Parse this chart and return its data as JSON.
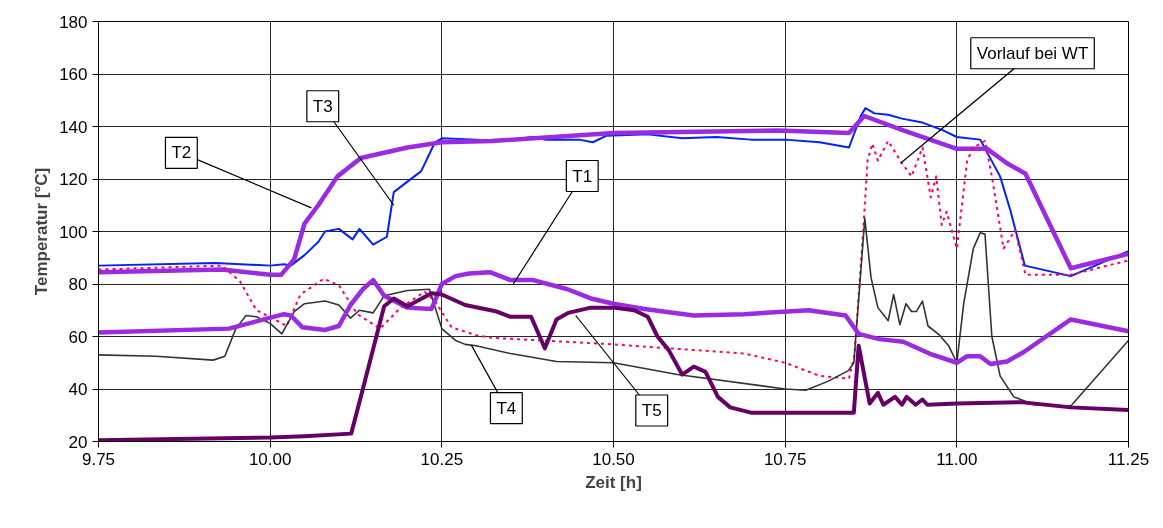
{
  "chart_data": {
    "type": "line",
    "xlabel": "Zeit [h]",
    "ylabel": "Temperatur [°C]",
    "xlim": [
      9.75,
      11.25
    ],
    "xticks": [
      {
        "value": 9.75,
        "label": "9.75"
      },
      {
        "value": 10.0,
        "label": "10.00"
      },
      {
        "value": 10.25,
        "label": "10.25"
      },
      {
        "value": 10.5,
        "label": "10.50"
      },
      {
        "value": 10.75,
        "label": "10.75"
      },
      {
        "value": 11.0,
        "label": "11.00"
      },
      {
        "value": 11.25,
        "label": "11.25"
      }
    ],
    "ylim": [
      20,
      180
    ],
    "yticks": [
      20,
      40,
      60,
      80,
      100,
      120,
      140,
      160,
      180
    ],
    "grid": true,
    "marker": "none",
    "series": [
      {
        "color": "#0022ff",
        "line_style": "solid",
        "x": [
          9.75,
          9.92,
          10.0,
          10.02,
          10.03,
          10.05,
          10.07,
          10.08,
          10.1,
          10.12,
          10.13,
          10.15,
          10.17,
          10.18,
          10.22,
          10.24,
          10.25,
          10.3,
          10.35,
          10.38,
          10.4,
          10.45,
          10.47,
          10.49,
          10.55,
          10.6,
          10.65,
          10.7,
          10.75,
          10.8,
          10.843,
          10.86,
          10.867,
          10.88,
          10.9,
          10.92,
          10.95,
          10.98,
          11.0,
          11.034,
          11.063,
          11.078,
          11.099,
          11.166,
          11.25
        ],
        "values": [
          87,
          88,
          87,
          87.5,
          87,
          91,
          96,
          100,
          101,
          97,
          101,
          95,
          98,
          115,
          123,
          134,
          135.5,
          135,
          134.5,
          136,
          135,
          135,
          134,
          136.5,
          137,
          135.5,
          136,
          135,
          135,
          134,
          132,
          144,
          147,
          145,
          144.5,
          143,
          141.5,
          138.5,
          136,
          135,
          121,
          108,
          87,
          83,
          92.5
        ]
      },
      {
        "color": "#9a2be2",
        "line_style": "solid",
        "x": [
          9.75,
          9.93,
          10.0,
          10.016,
          10.035,
          10.05,
          10.07,
          10.098,
          10.132,
          10.2,
          10.25,
          10.323,
          10.5,
          10.74,
          10.843,
          10.865,
          10.922,
          11.0,
          11.044,
          11.073,
          11.1,
          11.166,
          11.25
        ],
        "values": [
          84.5,
          85.5,
          83.5,
          83.5,
          89.5,
          103,
          110,
          121,
          128,
          132,
          134,
          134.5,
          137.5,
          138.5,
          137.5,
          144,
          138.5,
          131.5,
          131.5,
          126,
          122,
          86,
          91.5
        ]
      },
      {
        "color": "#ff0066",
        "line_style": "dashed",
        "x": [
          9.75,
          9.93,
          9.956,
          9.98,
          10.01,
          10.024,
          10.044,
          10.078,
          10.1,
          10.127,
          10.16,
          10.19,
          10.225,
          10.24,
          10.264,
          10.3,
          10.323,
          10.5,
          10.69,
          10.75,
          10.8,
          10.843,
          10.851,
          10.863,
          10.87,
          10.877,
          10.885,
          10.9,
          10.92,
          10.934,
          10.95,
          10.962,
          10.97,
          10.978,
          10.985,
          11.0,
          11.015,
          11.024,
          11.041,
          11.051,
          11.068,
          11.085,
          11.1,
          11.166,
          11.25
        ],
        "values": [
          85.5,
          87,
          81,
          70,
          66,
          64,
          76,
          82,
          79.5,
          68.5,
          63,
          71,
          77,
          73.5,
          63.5,
          60.5,
          59.5,
          57,
          53.5,
          50,
          45,
          44,
          53,
          98,
          127,
          133.5,
          127,
          134.5,
          126,
          121,
          132,
          113,
          121,
          102.5,
          107.5,
          93.5,
          127,
          132,
          134.5,
          121,
          93.5,
          100.5,
          83.5,
          83.5,
          89
        ]
      },
      {
        "color": "#333333",
        "line_style": "solid",
        "x": [
          9.75,
          9.834,
          9.917,
          9.934,
          9.95,
          9.965,
          9.98,
          10.0,
          10.017,
          10.035,
          10.05,
          10.08,
          10.1,
          10.117,
          10.13,
          10.15,
          10.166,
          10.2,
          10.232,
          10.25,
          10.27,
          10.284,
          10.3,
          10.35,
          10.417,
          10.5,
          10.593,
          10.75,
          10.78,
          10.813,
          10.842,
          10.85,
          10.866,
          10.875,
          10.885,
          10.9,
          10.908,
          10.917,
          10.926,
          10.934,
          10.941,
          10.95,
          10.958,
          10.975,
          10.988,
          11.0,
          11.01,
          11.024,
          11.034,
          11.041,
          11.051,
          11.063,
          11.083,
          11.112,
          11.166,
          11.25
        ],
        "values": [
          53,
          52.5,
          51,
          52.5,
          63,
          68,
          67.5,
          65,
          61,
          69.5,
          72.5,
          73.5,
          72,
          67,
          70,
          69,
          75.5,
          77.5,
          78,
          63,
          58.5,
          57,
          56.5,
          53.5,
          50.5,
          50,
          45.5,
          40,
          39.5,
          43,
          47,
          50,
          105,
          82.5,
          71,
          66,
          76,
          64.5,
          72.5,
          69.5,
          69.5,
          73.5,
          64,
          60.5,
          56.5,
          50,
          72.5,
          93.5,
          99.5,
          99,
          60,
          45,
          37,
          34,
          33.5,
          58.5
        ]
      },
      {
        "color": "#9a2be2",
        "line_style": "solid",
        "x": [
          9.75,
          9.94,
          10.02,
          10.03,
          10.047,
          10.08,
          10.1,
          10.117,
          10.135,
          10.15,
          10.166,
          10.2,
          10.235,
          10.25,
          10.27,
          10.29,
          10.32,
          10.35,
          10.383,
          10.433,
          10.467,
          10.5,
          10.545,
          10.617,
          10.69,
          10.784,
          10.838,
          10.857,
          10.887,
          10.922,
          10.96,
          11.0,
          11.015,
          11.034,
          11.049,
          11.073,
          11.097,
          11.166,
          11.25
        ],
        "values": [
          61.5,
          63,
          68.5,
          68,
          63.5,
          62.5,
          64,
          72,
          78,
          81.5,
          75.5,
          71,
          70.5,
          80,
          83,
          84,
          84.5,
          81.5,
          81.5,
          78,
          74.5,
          72.5,
          70.5,
          68,
          68.5,
          70,
          68,
          61,
          59,
          58,
          53.5,
          50,
          52.5,
          52.5,
          49.5,
          50.5,
          54,
          66.5,
          62
        ]
      },
      {
        "color": "#660066",
        "line_style": "solid",
        "x": [
          9.75,
          10.0,
          10.05,
          10.118,
          10.133,
          10.166,
          10.18,
          10.2,
          10.235,
          10.25,
          10.284,
          10.33,
          10.35,
          10.38,
          10.4,
          10.417,
          10.434,
          10.467,
          10.5,
          10.53,
          10.55,
          10.564,
          10.58,
          10.6,
          10.617,
          10.634,
          10.652,
          10.67,
          10.7,
          10.85,
          10.857,
          10.873,
          10.885,
          10.893,
          10.91,
          10.92,
          10.927,
          10.94,
          10.95,
          10.957,
          11.0,
          11.093,
          11.166,
          11.25
        ],
        "values": [
          20.5,
          21.5,
          22,
          23,
          38,
          71.5,
          74.5,
          71.5,
          76.5,
          76,
          72,
          69.5,
          67.5,
          67.5,
          55.5,
          66.5,
          69,
          71,
          71,
          70,
          67.5,
          60,
          55,
          45.5,
          48.5,
          46.5,
          37,
          33,
          31,
          31,
          56.5,
          34.5,
          38.5,
          34,
          37,
          34,
          37,
          34,
          36,
          34,
          34.5,
          35,
          33,
          32
        ]
      }
    ],
    "annotations": [
      {
        "text": "T3",
        "x": 10.18,
        "y": 110
      },
      {
        "text": "T2",
        "x": 10.06,
        "y": 109
      },
      {
        "text": "T1",
        "x": 10.354,
        "y": 80
      },
      {
        "text": "T4",
        "x": 10.293,
        "y": 56.7
      },
      {
        "text": "T5",
        "x": 10.445,
        "y": 68
      },
      {
        "text": "Vorlauf bei WT",
        "x": 10.918,
        "y": 126
      }
    ]
  }
}
